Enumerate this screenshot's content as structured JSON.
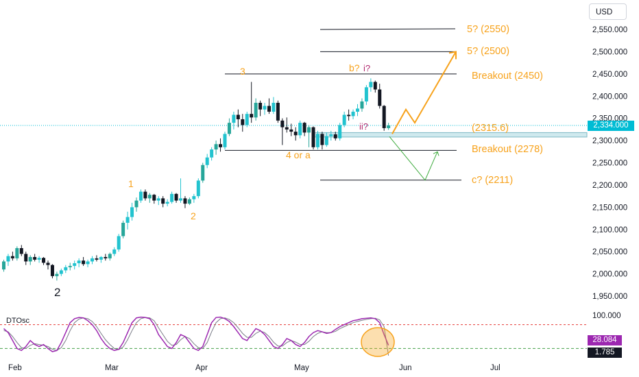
{
  "currency_button": "USD",
  "last_price_label": "2,334.000",
  "indicator": {
    "name": "DTOsc",
    "value_1": "28.084",
    "value_2": "1.785",
    "level_label": "100.000"
  },
  "colors": {
    "up": "#26a69a",
    "up_alt": "#22c3cf",
    "down": "#131722",
    "orange": "#f7a21b",
    "purple": "#b0276e",
    "green": "#3daa3d",
    "price_line": "#00bcd4",
    "osc_fast": "#9c27b0",
    "osc_slow": "#787b86"
  },
  "chart_data": {
    "type": "candlestick",
    "y_ticks": [
      "2,550.000",
      "2,500.000",
      "2,450.000",
      "2,400.000",
      "2,350.000",
      "2,300.000",
      "2,250.000",
      "2,200.000",
      "2,150.000",
      "2,100.000",
      "2,050.000",
      "2,000.000",
      "1,950.000"
    ],
    "y_tick_values": [
      2550,
      2500,
      2450,
      2400,
      2350,
      2300,
      2250,
      2200,
      2150,
      2100,
      2050,
      2000,
      1950
    ],
    "x_ticks": [
      "Feb",
      "Mar",
      "Apr",
      "May",
      "Jun",
      "Jul"
    ],
    "last_price": 2334.0,
    "levels": [
      {
        "price": 2550,
        "label": "5? (2550)",
        "color": "#131722"
      },
      {
        "price": 2500,
        "label": "5? (2500)",
        "color": "#131722"
      },
      {
        "price": 2450,
        "label": "Breakout (2450)",
        "color": "#131722"
      },
      {
        "price": 2278,
        "label": "Breakout (2278)",
        "color": "#131722"
      },
      {
        "price": 2211,
        "label": "c? (2211)",
        "color": "#131722"
      }
    ],
    "support_zone": {
      "label": "(2315.6)",
      "low": 2308,
      "high": 2318
    },
    "wave_labels": [
      "2",
      "1",
      "2",
      "3",
      "4 or a",
      "b? i?",
      "ii?"
    ],
    "scenarios": [
      {
        "name": "bullish",
        "color": "#f7a21b",
        "path_prices": [
          2315,
          2370,
          2340,
          2500
        ]
      },
      {
        "name": "bearish",
        "color": "#3daa3d",
        "path_prices": [
          2315,
          2211,
          2275
        ]
      }
    ],
    "candles": [
      [
        2010,
        2032,
        2005,
        2028
      ],
      [
        2028,
        2045,
        2018,
        2040
      ],
      [
        2040,
        2050,
        2030,
        2035
      ],
      [
        2035,
        2062,
        2030,
        2058
      ],
      [
        2058,
        2065,
        2040,
        2045
      ],
      [
        2045,
        2050,
        2020,
        2028
      ],
      [
        2028,
        2042,
        2020,
        2038
      ],
      [
        2038,
        2045,
        2028,
        2032
      ],
      [
        2032,
        2040,
        2025,
        2036
      ],
      [
        2036,
        2038,
        2020,
        2025
      ],
      [
        2025,
        2030,
        2010,
        2020
      ],
      [
        2020,
        2022,
        1990,
        1995
      ],
      [
        1995,
        2005,
        1985,
        2000
      ],
      [
        2000,
        2012,
        1995,
        2008
      ],
      [
        2008,
        2020,
        2002,
        2015
      ],
      [
        2015,
        2025,
        2008,
        2018
      ],
      [
        2018,
        2030,
        2010,
        2024
      ],
      [
        2024,
        2035,
        2015,
        2030
      ],
      [
        2030,
        2038,
        2018,
        2022
      ],
      [
        2022,
        2032,
        2015,
        2028
      ],
      [
        2028,
        2040,
        2022,
        2035
      ],
      [
        2035,
        2042,
        2028,
        2032
      ],
      [
        2032,
        2040,
        2025,
        2038
      ],
      [
        2038,
        2045,
        2030,
        2035
      ],
      [
        2035,
        2048,
        2030,
        2045
      ],
      [
        2045,
        2060,
        2040,
        2055
      ],
      [
        2055,
        2090,
        2050,
        2085
      ],
      [
        2085,
        2120,
        2080,
        2115
      ],
      [
        2115,
        2140,
        2100,
        2128
      ],
      [
        2128,
        2160,
        2120,
        2150
      ],
      [
        2150,
        2172,
        2140,
        2165
      ],
      [
        2165,
        2190,
        2160,
        2185
      ],
      [
        2185,
        2190,
        2165,
        2170
      ],
      [
        2170,
        2182,
        2160,
        2178
      ],
      [
        2178,
        2180,
        2158,
        2165
      ],
      [
        2165,
        2175,
        2155,
        2170
      ],
      [
        2170,
        2175,
        2150,
        2158
      ],
      [
        2158,
        2168,
        2152,
        2162
      ],
      [
        2162,
        2185,
        2158,
        2180
      ],
      [
        2180,
        2182,
        2160,
        2165
      ],
      [
        2165,
        2215,
        2160,
        2170
      ],
      [
        2170,
        2175,
        2148,
        2158
      ],
      [
        2158,
        2172,
        2155,
        2168
      ],
      [
        2168,
        2180,
        2160,
        2175
      ],
      [
        2175,
        2215,
        2170,
        2210
      ],
      [
        2210,
        2250,
        2205,
        2245
      ],
      [
        2245,
        2270,
        2238,
        2262
      ],
      [
        2262,
        2285,
        2255,
        2280
      ],
      [
        2280,
        2300,
        2268,
        2292
      ],
      [
        2292,
        2305,
        2275,
        2285
      ],
      [
        2285,
        2320,
        2280,
        2315
      ],
      [
        2315,
        2350,
        2310,
        2340
      ],
      [
        2340,
        2365,
        2325,
        2358
      ],
      [
        2358,
        2370,
        2330,
        2348
      ],
      [
        2348,
        2360,
        2320,
        2335
      ],
      [
        2335,
        2365,
        2330,
        2360
      ],
      [
        2360,
        2432,
        2340,
        2352
      ],
      [
        2352,
        2395,
        2345,
        2385
      ],
      [
        2385,
        2390,
        2355,
        2370
      ],
      [
        2370,
        2385,
        2358,
        2378
      ],
      [
        2378,
        2395,
        2360,
        2365
      ],
      [
        2365,
        2398,
        2360,
        2385
      ],
      [
        2385,
        2390,
        2340,
        2345
      ],
      [
        2345,
        2350,
        2290,
        2330
      ],
      [
        2330,
        2352,
        2318,
        2325
      ],
      [
        2325,
        2338,
        2310,
        2320
      ],
      [
        2320,
        2330,
        2300,
        2312
      ],
      [
        2312,
        2345,
        2305,
        2340
      ],
      [
        2340,
        2342,
        2310,
        2318
      ],
      [
        2318,
        2335,
        2285,
        2330
      ],
      [
        2330,
        2332,
        2280,
        2285
      ],
      [
        2285,
        2322,
        2280,
        2315
      ],
      [
        2315,
        2320,
        2280,
        2290
      ],
      [
        2290,
        2318,
        2286,
        2310
      ],
      [
        2310,
        2322,
        2300,
        2314
      ],
      [
        2314,
        2320,
        2300,
        2305
      ],
      [
        2305,
        2340,
        2300,
        2335
      ],
      [
        2335,
        2365,
        2330,
        2358
      ],
      [
        2358,
        2370,
        2345,
        2355
      ],
      [
        2355,
        2370,
        2348,
        2365
      ],
      [
        2365,
        2382,
        2355,
        2372
      ],
      [
        2372,
        2395,
        2365,
        2388
      ],
      [
        2388,
        2425,
        2380,
        2420
      ],
      [
        2420,
        2440,
        2410,
        2432
      ],
      [
        2432,
        2435,
        2408,
        2415
      ],
      [
        2415,
        2428,
        2372,
        2378
      ],
      [
        2378,
        2380,
        2322,
        2328
      ],
      [
        2328,
        2340,
        2324,
        2334
      ]
    ],
    "oscillator": {
      "upper_level": 80,
      "lower_level": 20,
      "range": [
        0,
        100
      ],
      "fast": [
        70,
        60,
        40,
        20,
        15,
        25,
        40,
        30,
        25,
        30,
        20,
        12,
        15,
        35,
        60,
        85,
        95,
        98,
        97,
        90,
        80,
        65,
        45,
        30,
        20,
        15,
        18,
        35,
        60,
        85,
        97,
        99,
        98,
        95,
        80,
        55,
        40,
        25,
        20,
        35,
        55,
        50,
        35,
        20,
        15,
        25,
        55,
        85,
        98,
        99,
        95,
        88,
        75,
        60,
        45,
        40,
        55,
        70,
        65,
        55,
        40,
        25,
        20,
        30,
        45,
        40,
        30,
        25,
        35,
        50,
        60,
        65,
        62,
        58,
        60,
        68,
        75,
        80,
        85,
        90,
        92,
        95,
        96,
        97,
        95,
        85,
        55,
        28
      ],
      "slow": [
        65,
        62,
        50,
        35,
        22,
        20,
        28,
        32,
        30,
        28,
        25,
        18,
        15,
        22,
        40,
        65,
        85,
        94,
        97,
        95,
        88,
        75,
        58,
        42,
        30,
        20,
        17,
        24,
        42,
        65,
        85,
        95,
        98,
        97,
        90,
        72,
        55,
        38,
        28,
        30,
        42,
        50,
        45,
        32,
        22,
        20,
        35,
        62,
        85,
        95,
        97,
        93,
        85,
        72,
        58,
        48,
        48,
        58,
        64,
        60,
        50,
        36,
        26,
        26,
        35,
        40,
        36,
        30,
        30,
        38,
        50,
        58,
        62,
        60,
        60,
        63,
        70,
        75,
        80,
        85,
        88,
        91,
        93,
        95,
        96,
        92,
        75,
        2
      ]
    }
  }
}
